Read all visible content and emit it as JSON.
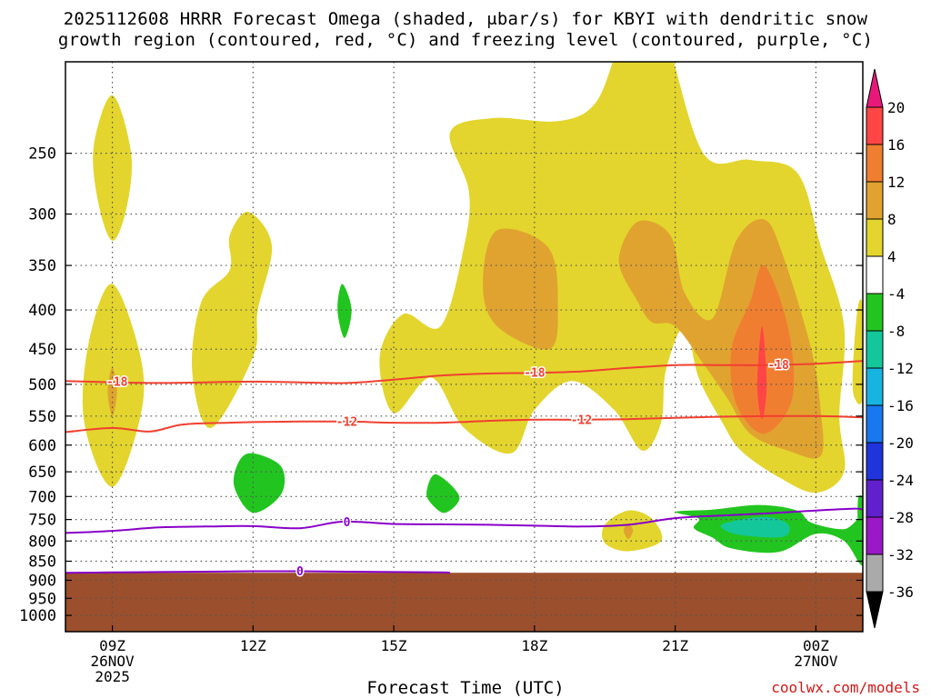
{
  "title_line1": "2025112608 HRRR Forecast Omega (shaded, μbar/s) for KBYI with dendritic snow",
  "title_line2": "growth region (contoured, red, °C) and freezing level (contoured, purple, °C)",
  "xlabel": "Forecast Time (UTC)",
  "credit": "coolwx.com/models",
  "colors": {
    "ground": "#9b4f2c",
    "dgz_line": "#f04030",
    "frz_line": "#8800c8",
    "grid": "#555555"
  },
  "chart_data": {
    "type": "time-height cross section",
    "title": "2025112608 HRRR Forecast Omega (shaded, μbar/s) for KBYI with dendritic snow growth region (contoured, red, °C) and freezing level (contoured, purple, °C)",
    "xlabel": "Forecast Time (UTC)",
    "ylabel": "Pressure (hPa)",
    "xlim_hours": [
      8,
      25
    ],
    "ylim_hpa": [
      1050,
      190
    ],
    "x_ticks": [
      {
        "hour": 9,
        "lines": [
          "09Z",
          "26NOV",
          "2025"
        ]
      },
      {
        "hour": 12,
        "lines": [
          "12Z"
        ]
      },
      {
        "hour": 15,
        "lines": [
          "15Z"
        ]
      },
      {
        "hour": 18,
        "lines": [
          "18Z"
        ]
      },
      {
        "hour": 21,
        "lines": [
          "21Z"
        ]
      },
      {
        "hour": 24,
        "lines": [
          "00Z",
          "27NOV"
        ]
      }
    ],
    "y_ticks": [
      250,
      300,
      350,
      400,
      450,
      500,
      550,
      600,
      650,
      700,
      750,
      800,
      850,
      900,
      950,
      1000
    ],
    "ground_top_hpa": 880,
    "colorbar": {
      "levels": [
        20,
        16,
        12,
        8,
        4,
        -4,
        -8,
        -12,
        -16,
        -20,
        -24,
        -28,
        -32,
        -36
      ],
      "colors": [
        "#e8187a",
        "#ff4545",
        "#f07e30",
        "#e0a330",
        "#e3d52d",
        "#ffffff",
        "#22c51f",
        "#13c79a",
        "#18b4e0",
        "#1878ee",
        "#2034dc",
        "#6020cc",
        "#9a18c6",
        "#aaaaaa",
        "#000000"
      ]
    },
    "contours": [
      {
        "name": "DGZ -18",
        "label": "-18",
        "color": "#f04030",
        "points": [
          [
            8,
            495
          ],
          [
            9,
            497
          ],
          [
            10,
            498
          ],
          [
            11,
            497
          ],
          [
            12,
            496
          ],
          [
            13,
            497
          ],
          [
            14,
            498
          ],
          [
            15,
            493
          ],
          [
            16,
            487
          ],
          [
            17,
            484
          ],
          [
            18,
            483
          ],
          [
            19,
            481
          ],
          [
            20,
            476
          ],
          [
            21,
            472
          ],
          [
            22,
            472
          ],
          [
            23,
            472
          ],
          [
            24,
            470
          ],
          [
            25,
            466
          ]
        ]
      },
      {
        "name": "DGZ -12",
        "label": "-12",
        "color": "#f04030",
        "points": [
          [
            8,
            577
          ],
          [
            9,
            570
          ],
          [
            9.8,
            576
          ],
          [
            10.5,
            564
          ],
          [
            11.5,
            561
          ],
          [
            12,
            560
          ],
          [
            13,
            559
          ],
          [
            14,
            559
          ],
          [
            15,
            561
          ],
          [
            16,
            561
          ],
          [
            17,
            558
          ],
          [
            18,
            556
          ],
          [
            19,
            556
          ],
          [
            20,
            555
          ],
          [
            21,
            553
          ],
          [
            22,
            551
          ],
          [
            23,
            550
          ],
          [
            24,
            550
          ],
          [
            25,
            552
          ]
        ]
      },
      {
        "name": "Freezing 0 upper",
        "label": "0",
        "color": "#8800c8",
        "points": [
          [
            8,
            781
          ],
          [
            9,
            776
          ],
          [
            10,
            768
          ],
          [
            11,
            766
          ],
          [
            12,
            765
          ],
          [
            13,
            770
          ],
          [
            13.9,
            755
          ],
          [
            15,
            760
          ],
          [
            16,
            761
          ],
          [
            17,
            762
          ],
          [
            18,
            764
          ],
          [
            19,
            766
          ],
          [
            20,
            762
          ],
          [
            21,
            747
          ],
          [
            22,
            741
          ],
          [
            23,
            736
          ],
          [
            24,
            730
          ],
          [
            24.8,
            726
          ],
          [
            25,
            728
          ]
        ]
      },
      {
        "name": "Freezing 0 lower",
        "label": "0",
        "color": "#8800c8",
        "points": [
          [
            8,
            880
          ],
          [
            9,
            879
          ],
          [
            10,
            878
          ],
          [
            11,
            877
          ],
          [
            12,
            876
          ],
          [
            13,
            876
          ],
          [
            14,
            877
          ],
          [
            15,
            878
          ],
          [
            16,
            879
          ],
          [
            16.2,
            880
          ]
        ]
      }
    ],
    "contour_labels": [
      {
        "text": "-18",
        "hour": 9.1,
        "hpa": 496
      },
      {
        "text": "-18",
        "hour": 18,
        "hpa": 483
      },
      {
        "text": "-18",
        "hour": 23.2,
        "hpa": 472
      },
      {
        "text": "-12",
        "hour": 14,
        "hpa": 559
      },
      {
        "text": "-12",
        "hour": 19,
        "hpa": 556
      },
      {
        "text": "0",
        "hour": 14,
        "hpa": 756
      },
      {
        "text": "0",
        "hour": 13,
        "hpa": 876
      }
    ],
    "shaded_regions": [
      {
        "level": "4-8",
        "color": "#e3d52d",
        "points": [
          [
            9,
            210
          ],
          [
            9.4,
            250
          ],
          [
            9.3,
            295
          ],
          [
            9,
            325
          ],
          [
            8.7,
            290
          ],
          [
            8.6,
            245
          ]
        ]
      },
      {
        "level": "4-8",
        "color": "#e3d52d",
        "points": [
          [
            9,
            370
          ],
          [
            9.6,
            460
          ],
          [
            9.6,
            550
          ],
          [
            9,
            680
          ],
          [
            8.4,
            560
          ],
          [
            8.5,
            440
          ]
        ]
      },
      {
        "level": "8-12",
        "color": "#e0a330",
        "points": [
          [
            9,
            475
          ],
          [
            9.1,
            510
          ],
          [
            9,
            550
          ],
          [
            8.9,
            510
          ]
        ]
      },
      {
        "level": "4-8",
        "color": "#e3d52d",
        "points": [
          [
            11.9,
            298
          ],
          [
            12.4,
            330
          ],
          [
            12.1,
            400
          ],
          [
            12,
            460
          ],
          [
            11.1,
            570
          ],
          [
            10.7,
            480
          ],
          [
            10.9,
            390
          ],
          [
            11.5,
            355
          ],
          [
            11.5,
            320
          ]
        ]
      },
      {
        "level": "4-8",
        "color": "#e3d52d",
        "points": [
          [
            16.2,
            235
          ],
          [
            17.1,
            225
          ],
          [
            18.5,
            227
          ],
          [
            19.3,
            215
          ],
          [
            19.8,
            180
          ],
          [
            20.3,
            150
          ],
          [
            20.8,
            175
          ],
          [
            21.6,
            250
          ],
          [
            22.6,
            255
          ],
          [
            23.6,
            265
          ],
          [
            24.1,
            330
          ],
          [
            24.6,
            420
          ],
          [
            24.5,
            550
          ],
          [
            24.6,
            650
          ],
          [
            24,
            692
          ],
          [
            23.2,
            660
          ],
          [
            22.4,
            610
          ],
          [
            22,
            560
          ],
          [
            21.5,
            490
          ],
          [
            21.2,
            420
          ],
          [
            20.8,
            480
          ],
          [
            20.7,
            560
          ],
          [
            20.3,
            610
          ],
          [
            19.7,
            540
          ],
          [
            18.8,
            495
          ],
          [
            18,
            540
          ],
          [
            17.5,
            615
          ],
          [
            16.5,
            570
          ],
          [
            15.8,
            490
          ],
          [
            15,
            545
          ],
          [
            14.7,
            460
          ],
          [
            15.2,
            405
          ],
          [
            16,
            420
          ],
          [
            16.5,
            330
          ],
          [
            16.6,
            280
          ]
        ]
      },
      {
        "level": "8-12",
        "color": "#e0a330",
        "points": [
          [
            17.2,
            315
          ],
          [
            18.3,
            332
          ],
          [
            18.5,
            400
          ],
          [
            18.3,
            450
          ],
          [
            17.2,
            420
          ],
          [
            16.9,
            370
          ]
        ]
      },
      {
        "level": "8-12",
        "color": "#e0a330",
        "points": [
          [
            20.2,
            307
          ],
          [
            20.9,
            320
          ],
          [
            21.2,
            380
          ],
          [
            21.8,
            410
          ],
          [
            22.3,
            325
          ],
          [
            22.9,
            305
          ],
          [
            23.3,
            340
          ],
          [
            23.9,
            450
          ],
          [
            24.1,
            540
          ],
          [
            24.1,
            620
          ],
          [
            23.4,
            610
          ],
          [
            22.6,
            580
          ],
          [
            22.1,
            520
          ],
          [
            21.6,
            470
          ],
          [
            21,
            420
          ],
          [
            20.5,
            415
          ],
          [
            20.2,
            390
          ],
          [
            19.8,
            345
          ]
        ]
      },
      {
        "level": "12-16",
        "color": "#f07e30",
        "points": [
          [
            22.9,
            350
          ],
          [
            23.4,
            420
          ],
          [
            23.5,
            520
          ],
          [
            22.9,
            580
          ],
          [
            22.3,
            530
          ],
          [
            22.2,
            450
          ],
          [
            22.6,
            390
          ]
        ]
      },
      {
        "level": "16-20",
        "color": "#ff4545",
        "points": [
          [
            22.85,
            420
          ],
          [
            22.95,
            500
          ],
          [
            22.85,
            555
          ],
          [
            22.75,
            500
          ]
        ]
      },
      {
        "level": "4-8",
        "color": "#e3d52d",
        "points": [
          [
            24.9,
            395
          ],
          [
            25,
            400
          ],
          [
            25,
            520
          ],
          [
            24.8,
            515
          ],
          [
            24.8,
            460
          ]
        ]
      },
      {
        "level": "4-8",
        "color": "#e3d52d",
        "points": [
          [
            20,
            730
          ],
          [
            20.5,
            748
          ],
          [
            20.7,
            800
          ],
          [
            20,
            825
          ],
          [
            19.5,
            805
          ],
          [
            19.5,
            762
          ]
        ]
      },
      {
        "level": "8-12",
        "color": "#e0a330",
        "points": [
          [
            20,
            760
          ],
          [
            20.1,
            775
          ],
          [
            20,
            795
          ],
          [
            19.9,
            775
          ]
        ]
      },
      {
        "level": "-8 to -4",
        "color": "#22c51f",
        "points": [
          [
            13.9,
            370
          ],
          [
            14.1,
            400
          ],
          [
            13.95,
            435
          ],
          [
            13.8,
            400
          ]
        ]
      },
      {
        "level": "-8 to -4",
        "color": "#22c51f",
        "points": [
          [
            12,
            615
          ],
          [
            12.6,
            640
          ],
          [
            12.6,
            695
          ],
          [
            12,
            735
          ],
          [
            11.6,
            680
          ],
          [
            11.7,
            630
          ]
        ]
      },
      {
        "level": "-8 to -4",
        "color": "#22c51f",
        "points": [
          [
            15.9,
            655
          ],
          [
            16.4,
            700
          ],
          [
            16.1,
            735
          ],
          [
            15.8,
            715
          ],
          [
            15.7,
            690
          ]
        ]
      },
      {
        "level": "-8 to -4",
        "color": "#22c51f",
        "points": [
          [
            21,
            733
          ],
          [
            21.8,
            728
          ],
          [
            22.8,
            718
          ],
          [
            23.6,
            730
          ],
          [
            23.9,
            757
          ],
          [
            24.6,
            772
          ],
          [
            25,
            748
          ],
          [
            25,
            860
          ],
          [
            24.6,
            800
          ],
          [
            24,
            783
          ],
          [
            23.2,
            827
          ],
          [
            22.2,
            818
          ],
          [
            21.8,
            792
          ],
          [
            21.4,
            770
          ],
          [
            21.5,
            748
          ]
        ]
      },
      {
        "level": "-8 to -4",
        "color": "#22c51f",
        "points": [
          [
            24.9,
            705
          ],
          [
            25,
            705
          ],
          [
            25,
            770
          ],
          [
            24.9,
            770
          ]
        ]
      },
      {
        "level": "-12 to -8",
        "color": "#13c79a",
        "points": [
          [
            22.1,
            757
          ],
          [
            22.9,
            744
          ],
          [
            23.4,
            760
          ],
          [
            23.3,
            790
          ],
          [
            22.4,
            786
          ],
          [
            22,
            770
          ]
        ]
      }
    ]
  }
}
